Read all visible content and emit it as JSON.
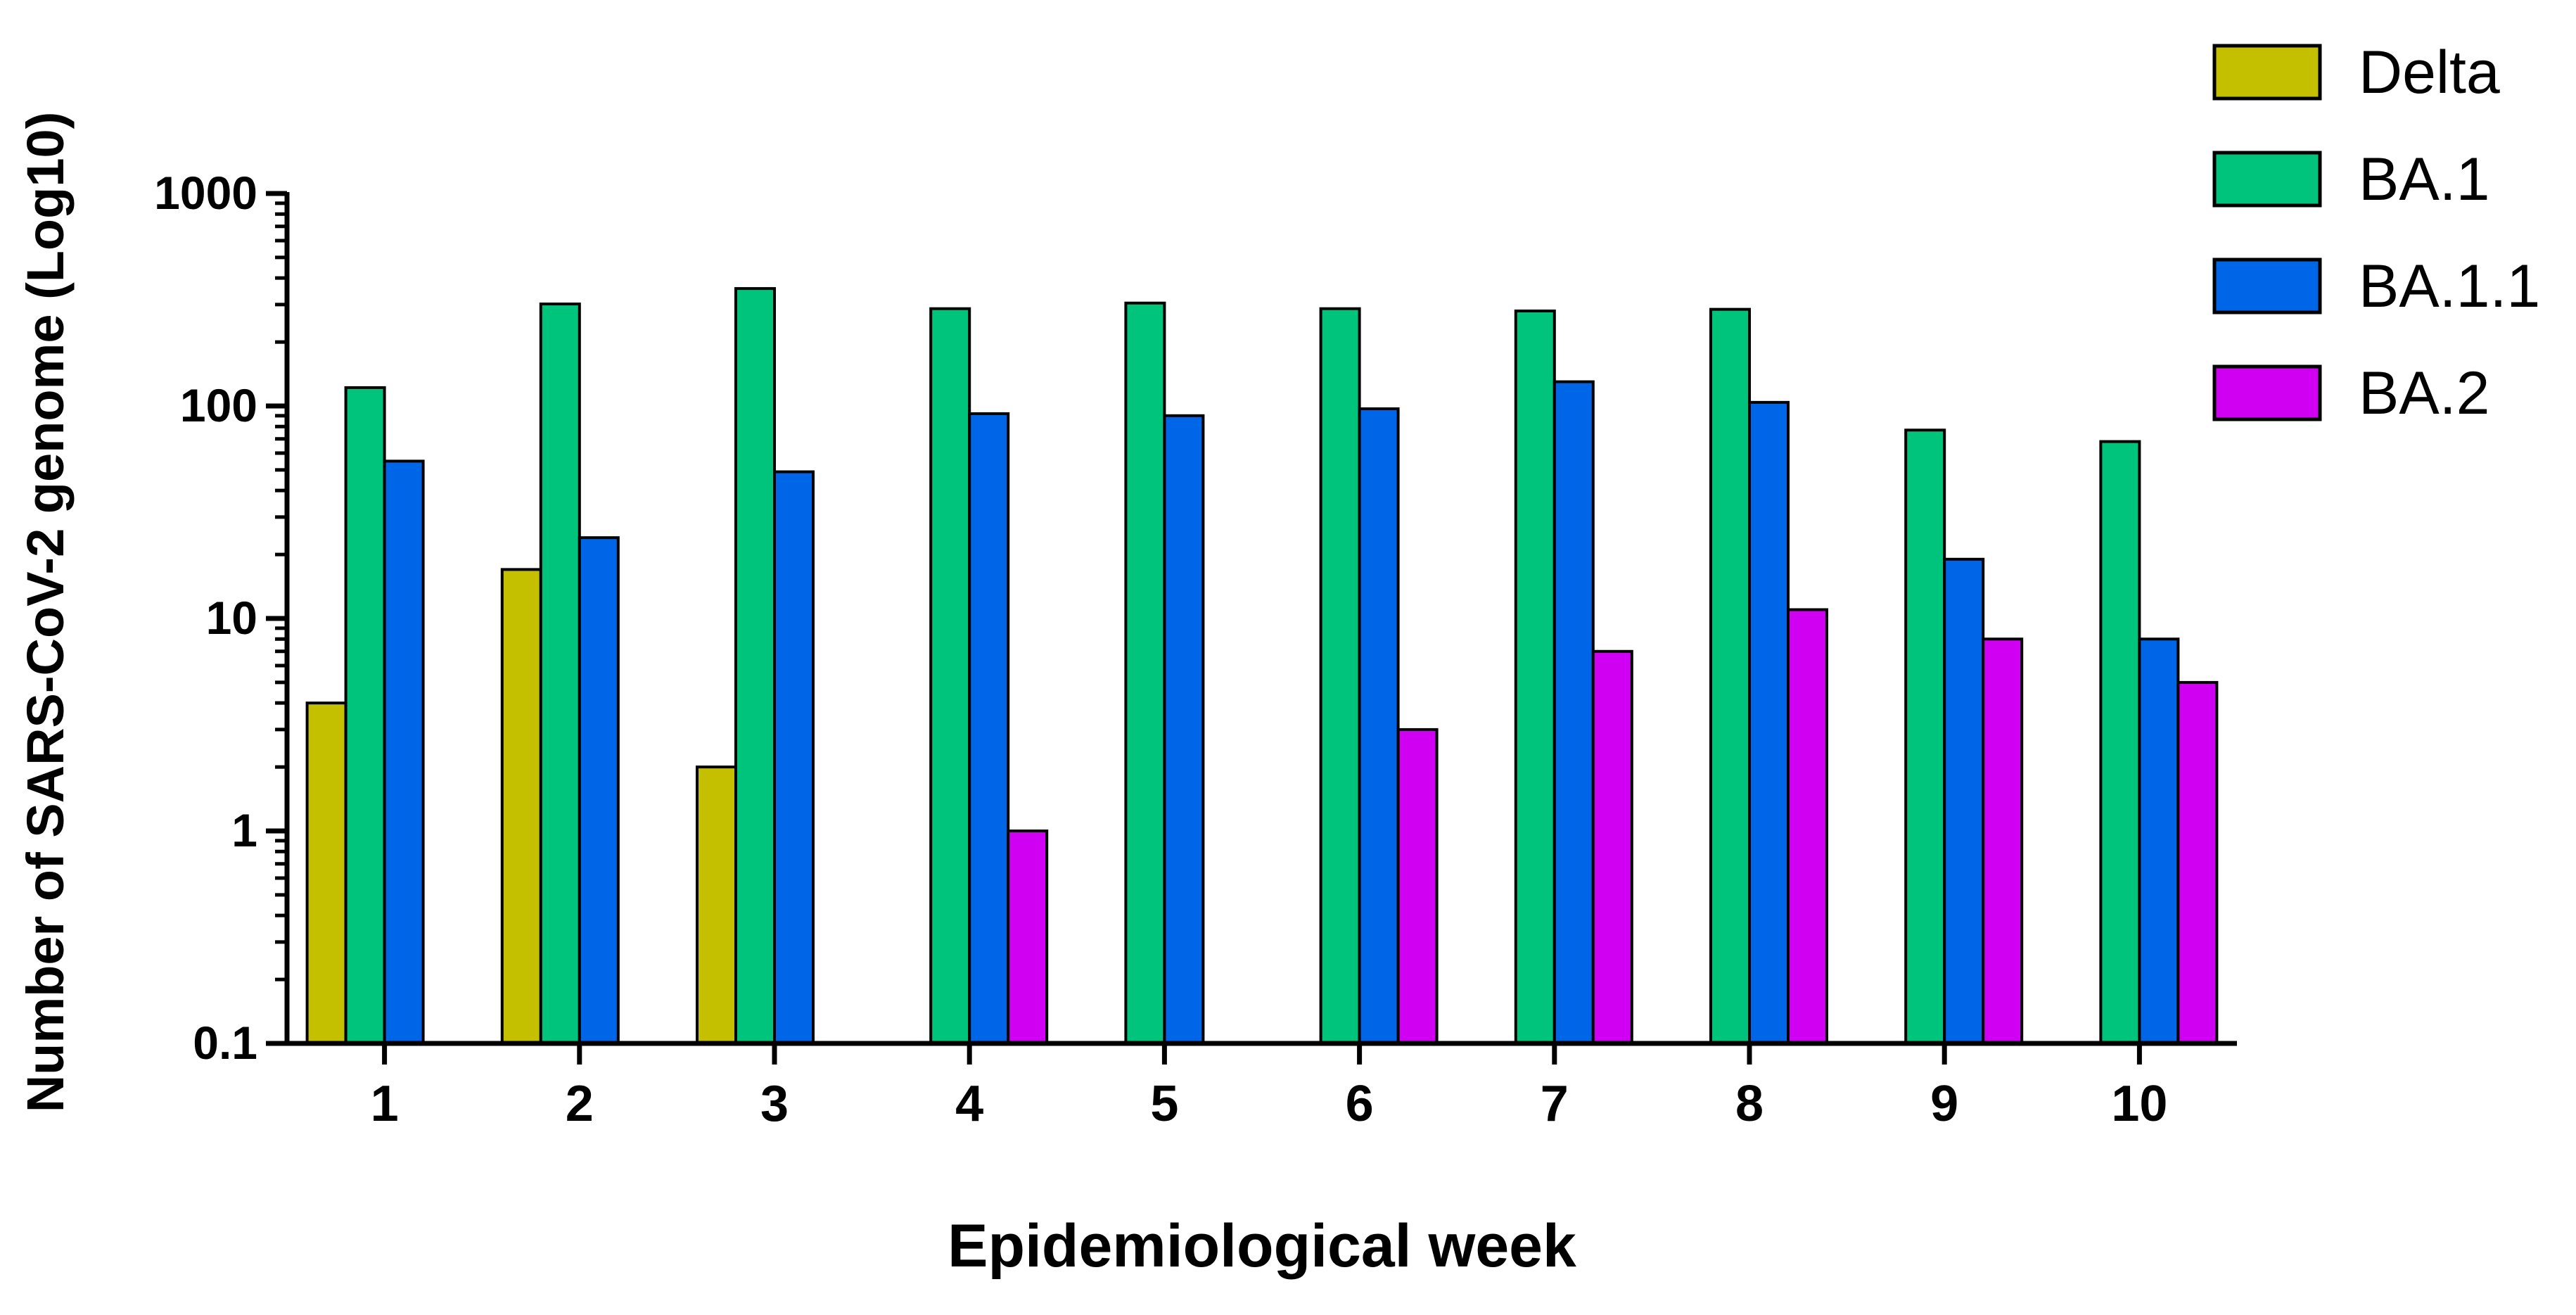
{
  "chart_data": {
    "type": "bar",
    "title": "",
    "xlabel": "Epidemiological week",
    "ylabel": "Number of SARS-CoV-2 genome (Log10)",
    "yscale": "log",
    "ylim": [
      0.1,
      1000
    ],
    "yticks": [
      0.1,
      1,
      10,
      100,
      1000
    ],
    "ytick_labels": [
      "0.1",
      "1",
      "10",
      "100",
      "1000"
    ],
    "categories": [
      "1",
      "2",
      "3",
      "4",
      "5",
      "6",
      "7",
      "8",
      "9",
      "10"
    ],
    "legend_position": "top-right",
    "series": [
      {
        "name": "Delta",
        "color": "#c4c000",
        "values": [
          4,
          17,
          2,
          null,
          null,
          null,
          null,
          null,
          null,
          null
        ]
      },
      {
        "name": "BA.1",
        "color": "#00c47c",
        "values": [
          122,
          302,
          357,
          287,
          305,
          287,
          280,
          285,
          77,
          68
        ]
      },
      {
        "name": "BA.1.1",
        "color": "#0066e8",
        "values": [
          55,
          24,
          49,
          92,
          90,
          97,
          130,
          104,
          19,
          8
        ]
      },
      {
        "name": "BA.2",
        "color": "#d000f2",
        "values": [
          null,
          null,
          null,
          1,
          null,
          3,
          7,
          11,
          8,
          5
        ]
      }
    ]
  }
}
